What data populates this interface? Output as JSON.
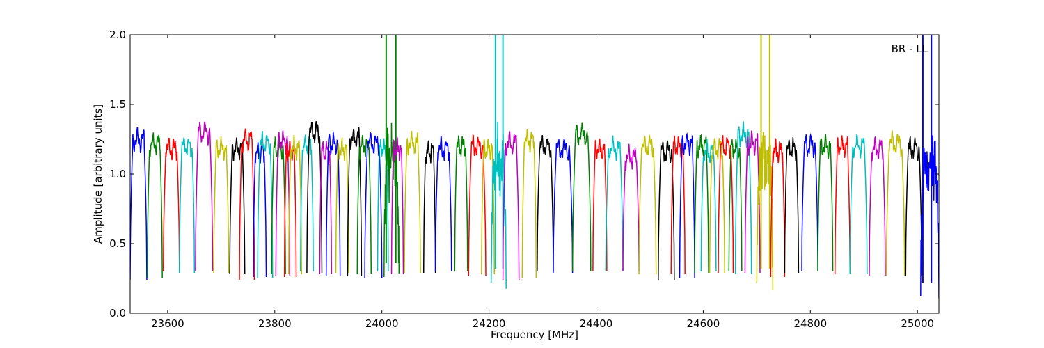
{
  "chart_data": {
    "type": "line",
    "title": "",
    "annotation": "BR - LL",
    "xlabel": "Frequency [MHz]",
    "ylabel": "Amplitude [arbitrary units]",
    "xlim": [
      23530,
      25040
    ],
    "ylim": [
      0.0,
      2.0
    ],
    "x_ticks": [
      23600,
      23800,
      24000,
      24200,
      24400,
      24600,
      24800,
      25000
    ],
    "y_ticks": [
      0.0,
      0.5,
      1.0,
      1.5,
      2.0
    ],
    "x_tick_labels": [
      "23600",
      "23800",
      "24000",
      "24200",
      "24400",
      "24600",
      "24800",
      "25000"
    ],
    "y_tick_labels": [
      "0.0",
      "0.5",
      "1.0",
      "1.5",
      "2.0"
    ],
    "grid": false,
    "legend": "none",
    "palette": [
      "#0000ff",
      "#008000",
      "#ff0000",
      "#00bfbf",
      "#bf00bf",
      "#bfbf00",
      "#000000"
    ],
    "channel_width_mhz": 14.5,
    "series": [
      {
        "color": "#0000ff",
        "x_start": 23530,
        "x_end": 23561,
        "level": 1.24,
        "min": 0.24
      },
      {
        "color": "#008000",
        "x_start": 23562,
        "x_end": 23590,
        "level": 1.22,
        "min": 0.25
      },
      {
        "color": "#ff0000",
        "x_start": 23592,
        "x_end": 23622,
        "level": 1.18,
        "min": 0.3
      },
      {
        "color": "#00bfbf",
        "x_start": 23622,
        "x_end": 23650,
        "level": 1.2,
        "min": 0.29
      },
      {
        "color": "#bf00bf",
        "x_start": 23652,
        "x_end": 23684,
        "level": 1.3,
        "min": 0.3
      },
      {
        "color": "#bfbf00",
        "x_start": 23686,
        "x_end": 23714,
        "level": 1.18,
        "min": 0.29
      },
      {
        "color": "#000000",
        "x_start": 23716,
        "x_end": 23744,
        "level": 1.18,
        "min": 0.28
      },
      {
        "color": "#ff0000",
        "x_start": 23734,
        "x_end": 23762,
        "level": 1.24,
        "min": 0.24
      },
      {
        "color": "#0000ff",
        "x_start": 23760,
        "x_end": 23784,
        "level": 1.16,
        "min": 0.26
      },
      {
        "color": "#00bfbf",
        "x_start": 23768,
        "x_end": 23796,
        "level": 1.22,
        "min": 0.25
      },
      {
        "color": "#008000",
        "x_start": 23794,
        "x_end": 23820,
        "level": 1.18,
        "min": 0.28
      },
      {
        "color": "#bf00bf",
        "x_start": 23802,
        "x_end": 23828,
        "level": 1.24,
        "min": 0.27
      },
      {
        "color": "#ff0000",
        "x_start": 23818,
        "x_end": 23840,
        "level": 1.16,
        "min": 0.26
      },
      {
        "color": "#bfbf00",
        "x_start": 23826,
        "x_end": 23850,
        "level": 1.18,
        "min": 0.28
      },
      {
        "color": "#00bfbf",
        "x_start": 23848,
        "x_end": 23872,
        "level": 1.2,
        "min": 0.3
      },
      {
        "color": "#000000",
        "x_start": 23860,
        "x_end": 23888,
        "level": 1.3,
        "min": 0.29
      },
      {
        "color": "#bf00bf",
        "x_start": 23884,
        "x_end": 23906,
        "level": 1.16,
        "min": 0.28
      },
      {
        "color": "#0000ff",
        "x_start": 23896,
        "x_end": 23922,
        "level": 1.22,
        "min": 0.27
      },
      {
        "color": "#bfbf00",
        "x_start": 23914,
        "x_end": 23938,
        "level": 1.18,
        "min": 0.29
      },
      {
        "color": "#000000",
        "x_start": 23936,
        "x_end": 23962,
        "level": 1.26,
        "min": 0.27
      },
      {
        "color": "#008000",
        "x_start": 23954,
        "x_end": 23980,
        "level": 1.2,
        "min": 0.28
      },
      {
        "color": "#0000ff",
        "x_start": 23968,
        "x_end": 24000,
        "level": 1.22,
        "min": 0.25
      },
      {
        "color": "#00bfbf",
        "x_start": 23992,
        "x_end": 24012,
        "level": 1.18,
        "min": 0.3
      },
      {
        "color": "#008000",
        "x_start": 24004,
        "x_end": 24032,
        "level": 1.1,
        "min": 0.26,
        "spikes": [
          24008,
          24026
        ]
      },
      {
        "color": "#bf00bf",
        "x_start": 24018,
        "x_end": 24040,
        "level": 1.18,
        "min": 0.28
      },
      {
        "color": "#bfbf00",
        "x_start": 24042,
        "x_end": 24072,
        "level": 1.22,
        "min": 0.29
      },
      {
        "color": "#000000",
        "x_start": 24078,
        "x_end": 24100,
        "level": 1.16,
        "min": 0.29
      },
      {
        "color": "#0000ff",
        "x_start": 24100,
        "x_end": 24130,
        "level": 1.18,
        "min": 0.3
      },
      {
        "color": "#008000",
        "x_start": 24136,
        "x_end": 24160,
        "level": 1.2,
        "min": 0.3
      },
      {
        "color": "#ff0000",
        "x_start": 24162,
        "x_end": 24194,
        "level": 1.2,
        "min": 0.27
      },
      {
        "color": "#bfbf00",
        "x_start": 24186,
        "x_end": 24210,
        "level": 1.18,
        "min": 0.28
      },
      {
        "color": "#00bfbf",
        "x_start": 24204,
        "x_end": 24232,
        "level": 1.1,
        "min": 0.22,
        "spikes": [
          24212,
          24226
        ]
      },
      {
        "color": "#bf00bf",
        "x_start": 24226,
        "x_end": 24256,
        "level": 1.22,
        "min": 0.24
      },
      {
        "color": "#bfbf00",
        "x_start": 24262,
        "x_end": 24288,
        "level": 1.24,
        "min": 0.25
      },
      {
        "color": "#000000",
        "x_start": 24290,
        "x_end": 24320,
        "level": 1.2,
        "min": 0.3
      },
      {
        "color": "#0000ff",
        "x_start": 24320,
        "x_end": 24356,
        "level": 1.18,
        "min": 0.29
      },
      {
        "color": "#008000",
        "x_start": 24356,
        "x_end": 24390,
        "level": 1.28,
        "min": 0.3
      },
      {
        "color": "#ff0000",
        "x_start": 24394,
        "x_end": 24420,
        "level": 1.18,
        "min": 0.3
      },
      {
        "color": "#00bfbf",
        "x_start": 24418,
        "x_end": 24450,
        "level": 1.18,
        "min": 0.3
      },
      {
        "color": "#bf00bf",
        "x_start": 24450,
        "x_end": 24480,
        "level": 1.12,
        "min": 0.3
      },
      {
        "color": "#bfbf00",
        "x_start": 24480,
        "x_end": 24512,
        "level": 1.2,
        "min": 0.28
      },
      {
        "color": "#000000",
        "x_start": 24516,
        "x_end": 24546,
        "level": 1.16,
        "min": 0.24
      },
      {
        "color": "#ff0000",
        "x_start": 24540,
        "x_end": 24566,
        "level": 1.2,
        "min": 0.28
      },
      {
        "color": "#0000ff",
        "x_start": 24556,
        "x_end": 24584,
        "level": 1.22,
        "min": 0.25
      },
      {
        "color": "#008000",
        "x_start": 24584,
        "x_end": 24610,
        "level": 1.2,
        "min": 0.29
      },
      {
        "color": "#00bfbf",
        "x_start": 24596,
        "x_end": 24624,
        "level": 1.16,
        "min": 0.3
      },
      {
        "color": "#bfbf00",
        "x_start": 24612,
        "x_end": 24640,
        "level": 1.18,
        "min": 0.29
      },
      {
        "color": "#ff0000",
        "x_start": 24628,
        "x_end": 24656,
        "level": 1.2,
        "min": 0.29
      },
      {
        "color": "#008000",
        "x_start": 24648,
        "x_end": 24672,
        "level": 1.18,
        "min": 0.3
      },
      {
        "color": "#00bfbf",
        "x_start": 24660,
        "x_end": 24690,
        "level": 1.28,
        "min": 0.28
      },
      {
        "color": "#bf00bf",
        "x_start": 24678,
        "x_end": 24706,
        "level": 1.22,
        "min": 0.29
      },
      {
        "color": "#bfbf00",
        "x_start": 24700,
        "x_end": 24730,
        "level": 1.1,
        "min": 0.22,
        "spikes": [
          24708,
          24724
        ]
      },
      {
        "color": "#ff0000",
        "x_start": 24726,
        "x_end": 24752,
        "level": 1.16,
        "min": 0.26
      },
      {
        "color": "#000000",
        "x_start": 24752,
        "x_end": 24778,
        "level": 1.18,
        "min": 0.29
      },
      {
        "color": "#0000ff",
        "x_start": 24784,
        "x_end": 24814,
        "level": 1.2,
        "min": 0.3
      },
      {
        "color": "#008000",
        "x_start": 24814,
        "x_end": 24842,
        "level": 1.2,
        "min": 0.3
      },
      {
        "color": "#ff0000",
        "x_start": 24846,
        "x_end": 24874,
        "level": 1.2,
        "min": 0.28
      },
      {
        "color": "#00bfbf",
        "x_start": 24874,
        "x_end": 24906,
        "level": 1.2,
        "min": 0.28
      },
      {
        "color": "#bf00bf",
        "x_start": 24910,
        "x_end": 24940,
        "level": 1.18,
        "min": 0.27
      },
      {
        "color": "#bfbf00",
        "x_start": 24942,
        "x_end": 24976,
        "level": 1.22,
        "min": 0.27
      },
      {
        "color": "#000000",
        "x_start": 24978,
        "x_end": 25008,
        "level": 1.18,
        "min": 0.27
      },
      {
        "color": "#0000ff",
        "x_start": 25006,
        "x_end": 25040,
        "level": 1.05,
        "min": 0.12,
        "spikes": [
          25010,
          25026
        ]
      }
    ]
  }
}
